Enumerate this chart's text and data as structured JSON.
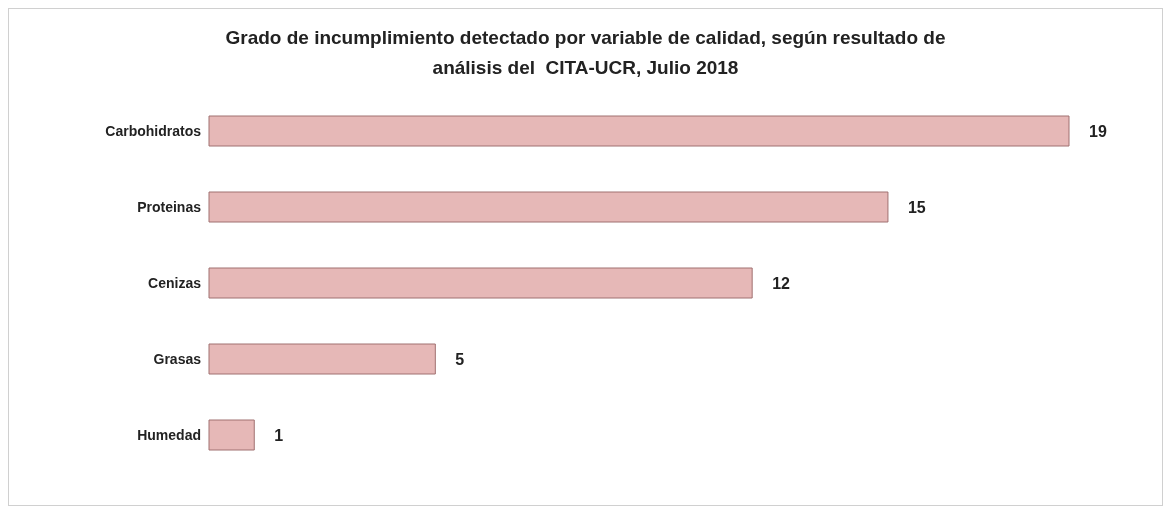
{
  "chart_data": {
    "type": "bar",
    "orientation": "horizontal",
    "title": "Grado de incumplimiento detectado por variable de calidad, según resultado de análisis del  CITA-UCR, Julio 2018",
    "categories": [
      "Carbohidratos",
      "Proteinas",
      "Cenizas",
      "Grasas",
      "Humedad"
    ],
    "values": [
      19,
      15,
      12,
      5,
      1
    ],
    "color": "#e6b8b7",
    "data_labels": true
  }
}
